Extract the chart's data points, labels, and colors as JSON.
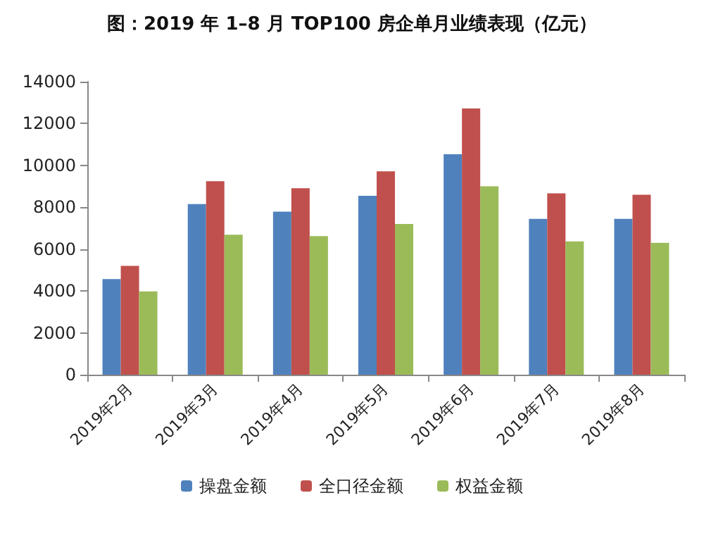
{
  "chart_data": {
    "type": "bar",
    "title": "图：2019 年 1–8 月 TOP100 房企单月业绩表现（亿元）",
    "categories": [
      "2019年2月",
      "2019年3月",
      "2019年4月",
      "2019年5月",
      "2019年6月",
      "2019年7月",
      "2019年8月"
    ],
    "series": [
      {
        "name": "操盘金额",
        "color": "#4f81bd",
        "values": [
          4570,
          8150,
          7790,
          8550,
          10530,
          7450,
          7450
        ]
      },
      {
        "name": "全口径金额",
        "color": "#c0504d",
        "values": [
          5200,
          9250,
          8910,
          9720,
          12720,
          8670,
          8600
        ]
      },
      {
        "name": "权益金额",
        "color": "#9bbb59",
        "values": [
          3980,
          6690,
          6620,
          7200,
          9000,
          6370,
          6300
        ]
      }
    ],
    "ylim": [
      0,
      14000
    ],
    "yticks": [
      0,
      2000,
      4000,
      6000,
      8000,
      10000,
      12000,
      14000
    ],
    "grid": false,
    "legend": "bottom"
  }
}
